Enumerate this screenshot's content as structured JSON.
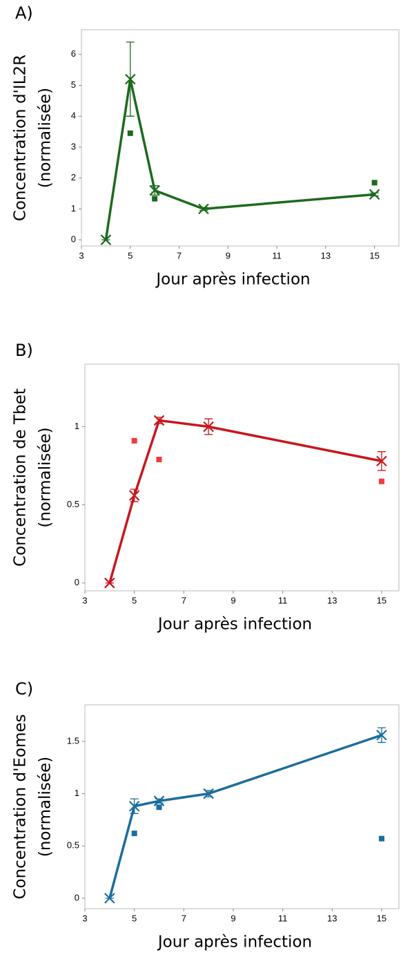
{
  "chart_data": [
    {
      "type": "line",
      "panel_label": "A)",
      "y_label": [
        "Concentration d'IL2R",
        "(normalisée)"
      ],
      "x_label": "Jour après infection",
      "xlim": [
        3,
        16
      ],
      "xticks": [
        3,
        5,
        7,
        9,
        11,
        13,
        15
      ],
      "ylim": [
        -0.2,
        6.8
      ],
      "yticks": [
        0,
        1,
        2,
        3,
        4,
        5,
        6
      ],
      "series": [
        {
          "color": "#1d6a1d",
          "x": [
            4,
            5,
            6,
            8,
            15
          ],
          "values": [
            0,
            5.2,
            1.6,
            1.0,
            1.47
          ],
          "errors": [
            0,
            1.2,
            0.15,
            0.05,
            0.05
          ]
        },
        {
          "type": "scatter",
          "color": "#1d6a1d",
          "x": [
            5,
            6,
            15
          ],
          "values": [
            3.45,
            1.33,
            1.85
          ]
        }
      ]
    },
    {
      "type": "line",
      "panel_label": "B)",
      "y_label": [
        "Concentration de Tbet",
        "(normalisée)"
      ],
      "x_label": "Jour après infection",
      "xlim": [
        3,
        15.7
      ],
      "xticks": [
        3,
        5,
        7,
        9,
        11,
        13,
        15
      ],
      "ylim": [
        -0.05,
        1.4
      ],
      "yticks": [
        0,
        0.5,
        1
      ],
      "series": [
        {
          "color": "#c8161d",
          "x": [
            4,
            5,
            6,
            8,
            15
          ],
          "values": [
            0,
            0.56,
            1.04,
            1.0,
            0.78
          ],
          "errors": [
            0,
            0.04,
            0.02,
            0.05,
            0.06
          ]
        },
        {
          "type": "scatter",
          "color": "#f03c3c",
          "x": [
            5,
            6,
            15
          ],
          "values": [
            0.91,
            0.79,
            0.65
          ]
        }
      ]
    },
    {
      "type": "line",
      "panel_label": "C)",
      "y_label": [
        "Concentration d'Eomes",
        "(normalisée)"
      ],
      "x_label": "Jour après infection",
      "xlim": [
        3,
        15.7
      ],
      "xticks": [
        3,
        5,
        7,
        9,
        11,
        13,
        15
      ],
      "ylim": [
        -0.1,
        1.85
      ],
      "yticks": [
        0,
        0.5,
        1,
        1.5
      ],
      "series": [
        {
          "color": "#1b6d9c",
          "x": [
            4,
            5,
            6,
            8,
            15
          ],
          "values": [
            0,
            0.88,
            0.93,
            1.0,
            1.56
          ],
          "errors": [
            0,
            0.07,
            0.02,
            0.03,
            0.07
          ]
        },
        {
          "type": "scatter",
          "color": "#1b6d9c",
          "x": [
            5,
            6,
            15
          ],
          "values": [
            0.62,
            0.87,
            0.57
          ]
        }
      ]
    }
  ]
}
